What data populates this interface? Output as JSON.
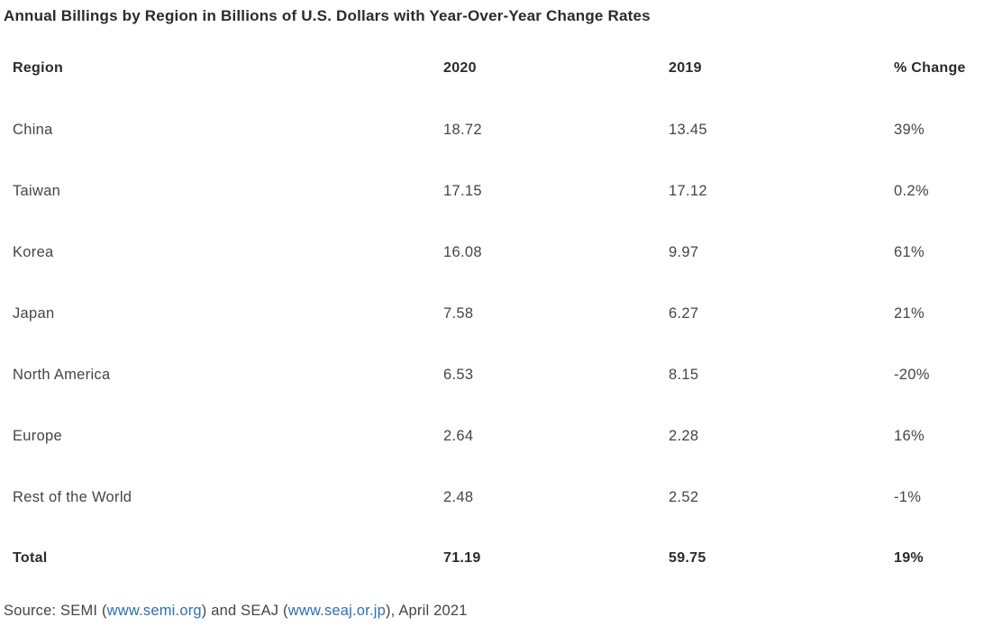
{
  "title": "Annual Billings by Region in Billions of U.S. Dollars with Year-Over-Year Change Rates",
  "table": {
    "columns": [
      "Region",
      "2020",
      "2019",
      "% Change"
    ],
    "rows": [
      {
        "region": "China",
        "y2020": "18.72",
        "y2019": "13.45",
        "change": "39%"
      },
      {
        "region": "Taiwan",
        "y2020": "17.15",
        "y2019": "17.12",
        "change": "0.2%"
      },
      {
        "region": "Korea",
        "y2020": "16.08",
        "y2019": "9.97",
        "change": "61%"
      },
      {
        "region": "Japan",
        "y2020": "7.58",
        "y2019": "6.27",
        "change": "21%"
      },
      {
        "region": "North America",
        "y2020": "6.53",
        "y2019": "8.15",
        "change": "-20%"
      },
      {
        "region": "Europe",
        "y2020": "2.64",
        "y2019": "2.28",
        "change": "16%"
      },
      {
        "region": "Rest of the World",
        "y2020": "2.48",
        "y2019": "2.52",
        "change": "-1%"
      }
    ],
    "total": {
      "region": "Total",
      "y2020": "71.19",
      "y2019": "59.75",
      "change": "19%"
    }
  },
  "footer": {
    "prefix": "Source: SEMI (",
    "link1": "www.semi.org",
    "middle": ") and SEAJ (",
    "link2": "www.seaj.or.jp",
    "suffix": "), April 2021"
  },
  "colors": {
    "title_text": "#2b2b2b",
    "header_text": "#2b2b2b",
    "body_text": "#454545",
    "link": "#2e6fb6",
    "background": "#ffffff"
  },
  "chart_data": {
    "type": "table",
    "title": "Annual Billings by Region in Billions of U.S. Dollars with Year-Over-Year Change Rates",
    "columns": [
      "Region",
      "2020",
      "2019",
      "% Change"
    ],
    "rows": [
      [
        "China",
        18.72,
        13.45,
        "39%"
      ],
      [
        "Taiwan",
        17.15,
        17.12,
        "0.2%"
      ],
      [
        "Korea",
        16.08,
        9.97,
        "61%"
      ],
      [
        "Japan",
        7.58,
        6.27,
        "21%"
      ],
      [
        "North America",
        6.53,
        8.15,
        "-20%"
      ],
      [
        "Europe",
        2.64,
        2.28,
        "16%"
      ],
      [
        "Rest of the World",
        2.48,
        2.52,
        "-1%"
      ]
    ],
    "total_row": [
      "Total",
      71.19,
      59.75,
      "19%"
    ],
    "source": "Source: SEMI (www.semi.org) and SEAJ (www.seaj.or.jp), April 2021",
    "units": "Billions of U.S. Dollars"
  }
}
